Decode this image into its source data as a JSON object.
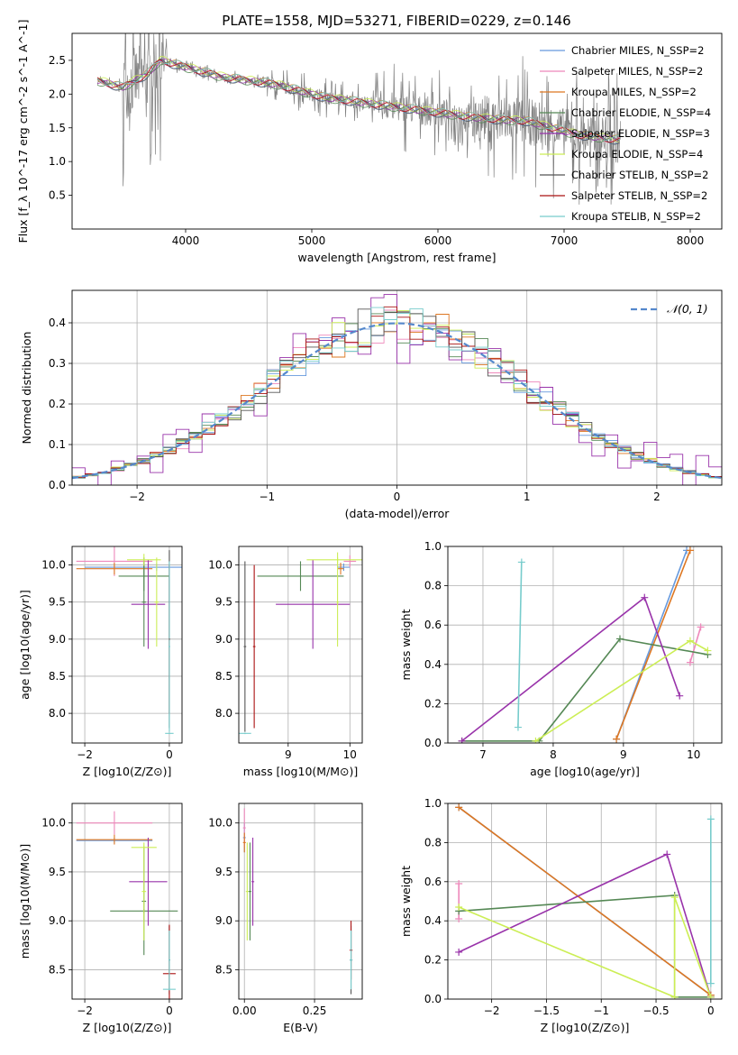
{
  "title": "PLATE=1558, MJD=53271, FIBERID=0229, z=0.146",
  "series": [
    {
      "key": "chab_miles",
      "color": "#6699dd"
    },
    {
      "key": "salp_miles",
      "color": "#ee88bb"
    },
    {
      "key": "krou_miles",
      "color": "#dd7722"
    },
    {
      "key": "chab_elodie",
      "color": "#558855"
    },
    {
      "key": "salp_elodie",
      "color": "#9933aa"
    },
    {
      "key": "krou_elodie",
      "color": "#ccee55"
    },
    {
      "key": "chab_stelib",
      "color": "#555555"
    },
    {
      "key": "salp_stelib",
      "color": "#aa1111"
    },
    {
      "key": "krou_stelib",
      "color": "#77cccc"
    }
  ],
  "legend_labels": [
    "Chabrier MILES, N_SSP=2",
    "Salpeter MILES, N_SSP=2",
    "Kroupa MILES, N_SSP=2",
    "Chabrier ELODIE, N_SSP=4",
    "Salpeter ELODIE, N_SSP=3",
    "Kroupa ELODIE, N_SSP=4",
    "Chabrier STELIB, N_SSP=2",
    "Salpeter STELIB, N_SSP=2",
    "Kroupa STELIB, N_SSP=2"
  ],
  "chart_data": [
    {
      "id": "spectrum",
      "type": "line",
      "xlabel": "wavelength [Angstrom, rest frame]",
      "ylabel": "Flux [f_λ 10^-17 erg cm^-2 s^-1 A^-1]",
      "xlim": [
        3100,
        8250
      ],
      "ylim": [
        0,
        2.9
      ],
      "xticks": [
        4000,
        5000,
        6000,
        7000,
        8000
      ],
      "yticks": [
        0.5,
        1.0,
        1.5,
        2.0,
        2.5
      ],
      "data_color": "#808080",
      "continuum": [
        [
          3300,
          2.2
        ],
        [
          3500,
          2.1
        ],
        [
          3700,
          2.3
        ],
        [
          3800,
          2.5
        ],
        [
          3900,
          2.45
        ],
        [
          4100,
          2.35
        ],
        [
          4300,
          2.25
        ],
        [
          4500,
          2.2
        ],
        [
          4700,
          2.15
        ],
        [
          4900,
          2.05
        ],
        [
          5100,
          1.95
        ],
        [
          5300,
          1.9
        ],
        [
          5500,
          1.85
        ],
        [
          5700,
          1.8
        ],
        [
          5900,
          1.75
        ],
        [
          6100,
          1.7
        ],
        [
          6300,
          1.65
        ],
        [
          6500,
          1.62
        ],
        [
          6700,
          1.6
        ],
        [
          6900,
          1.5
        ],
        [
          7100,
          1.4
        ],
        [
          7300,
          1.35
        ],
        [
          7500,
          1.3
        ]
      ]
    },
    {
      "id": "residuals",
      "type": "line",
      "xlabel": "(data-model)/error",
      "ylabel": "Normed distribution",
      "xlim": [
        -2.5,
        2.5
      ],
      "ylim": [
        0,
        0.48
      ],
      "xticks": [
        -2,
        -1,
        0,
        1,
        2
      ],
      "yticks": [
        0.0,
        0.1,
        0.2,
        0.3,
        0.4
      ],
      "gaussian_label": "𝒩(0, 1)",
      "gaussian_color": "#5588cc"
    },
    {
      "id": "age_z",
      "type": "scatter",
      "xlabel": "Z [log10(Z/Z⊙)]",
      "ylabel": "age  [log10(age/yr)]",
      "xlim": [
        -2.3,
        0.3
      ],
      "ylim": [
        7.6,
        10.25
      ],
      "xticks": [
        -2,
        0
      ],
      "yticks": [
        8.0,
        8.5,
        9.0,
        9.5,
        10.0
      ],
      "points": [
        {
          "s": 0,
          "x": -0.3,
          "y": 9.97,
          "xe": 1.7,
          "ye": 0.05
        },
        {
          "s": 1,
          "x": -1.3,
          "y": 10.05,
          "xe": 0.9,
          "ye": 0.2
        },
        {
          "s": 2,
          "x": -1.3,
          "y": 9.95,
          "xe": 0.9,
          "ye": 0.08
        },
        {
          "s": 3,
          "x": -0.6,
          "y": 9.85,
          "xe": 0.6,
          "ye": 0.2
        },
        {
          "s": 3,
          "x": -0.6,
          "y": 9.5,
          "xe": 0.05,
          "ye": 0.6
        },
        {
          "s": 4,
          "x": -0.5,
          "y": 9.47,
          "xe": 0.4,
          "ye": 0.6
        },
        {
          "s": 5,
          "x": -0.6,
          "y": 10.07,
          "xe": 0.4,
          "ye": 0.08
        },
        {
          "s": 5,
          "x": -0.3,
          "y": 9.5,
          "xe": 0.05,
          "ye": 0.6
        },
        {
          "s": 6,
          "x": 0.0,
          "y": 9.0,
          "xe": 0.02,
          "ye": 1.2
        },
        {
          "s": 7,
          "x": 0.0,
          "y": 9.0,
          "xe": 0.02,
          "ye": 1.0
        },
        {
          "s": 8,
          "x": 0.0,
          "y": 7.73,
          "xe": 0.1,
          "ye": 0.01
        },
        {
          "s": 8,
          "x": 0.0,
          "y": 8.9,
          "xe": 0.02,
          "ye": 1.15
        }
      ]
    },
    {
      "id": "age_mass",
      "type": "scatter",
      "xlabel": "mass [log10(M/M⊙)]",
      "ylabel": "",
      "xlim": [
        8.2,
        10.2
      ],
      "ylim": [
        7.6,
        10.25
      ],
      "xticks": [
        9,
        10
      ],
      "yticks": [
        8.0,
        8.5,
        9.0,
        9.5,
        10.0
      ],
      "points": [
        {
          "s": 0,
          "x": 9.9,
          "y": 9.97,
          "xe": 0.1,
          "ye": 0.05
        },
        {
          "s": 1,
          "x": 10.0,
          "y": 10.05,
          "xe": 0.1,
          "ye": 0.08
        },
        {
          "s": 2,
          "x": 9.85,
          "y": 9.95,
          "xe": 0.05,
          "ye": 0.08
        },
        {
          "s": 3,
          "x": 9.2,
          "y": 9.85,
          "xe": 0.7,
          "ye": 0.2
        },
        {
          "s": 4,
          "x": 9.4,
          "y": 9.47,
          "xe": 0.6,
          "ye": 0.6
        },
        {
          "s": 5,
          "x": 9.8,
          "y": 10.07,
          "xe": 0.5,
          "ye": 0.1
        },
        {
          "s": 5,
          "x": 9.8,
          "y": 9.5,
          "xe": 0.02,
          "ye": 0.6
        },
        {
          "s": 6,
          "x": 8.3,
          "y": 8.9,
          "xe": 0.02,
          "ye": 1.15
        },
        {
          "s": 7,
          "x": 8.45,
          "y": 8.9,
          "xe": 0.02,
          "ye": 1.1
        },
        {
          "s": 8,
          "x": 8.3,
          "y": 7.73,
          "xe": 0.1,
          "ye": 0.01
        }
      ]
    },
    {
      "id": "weight_age",
      "type": "line",
      "xlabel": "age  [log10(age/yr)]",
      "ylabel": "mass weight",
      "xlim": [
        6.5,
        10.4
      ],
      "ylim": [
        0,
        1.0
      ],
      "xticks": [
        7,
        8,
        9,
        10
      ],
      "yticks": [
        0.0,
        0.2,
        0.4,
        0.6,
        0.8,
        1.0
      ],
      "lines": [
        {
          "s": 0,
          "pts": [
            [
              8.9,
              0.02
            ],
            [
              9.9,
              0.98
            ]
          ]
        },
        {
          "s": 1,
          "pts": [
            [
              9.95,
              0.41
            ],
            [
              10.1,
              0.59
            ]
          ]
        },
        {
          "s": 2,
          "pts": [
            [
              8.9,
              0.02
            ],
            [
              9.95,
              0.98
            ]
          ]
        },
        {
          "s": 3,
          "pts": [
            [
              6.7,
              0.01
            ],
            [
              7.8,
              0.01
            ],
            [
              8.95,
              0.53
            ],
            [
              10.2,
              0.45
            ]
          ]
        },
        {
          "s": 4,
          "pts": [
            [
              6.7,
              0.01
            ],
            [
              9.3,
              0.74
            ],
            [
              9.8,
              0.24
            ]
          ]
        },
        {
          "s": 5,
          "pts": [
            [
              7.75,
              0.01
            ],
            [
              9.95,
              0.52
            ],
            [
              10.2,
              0.47
            ]
          ]
        },
        {
          "s": 8,
          "pts": [
            [
              7.5,
              0.08
            ],
            [
              7.55,
              0.92
            ]
          ]
        }
      ]
    },
    {
      "id": "mass_z",
      "type": "scatter",
      "xlabel": "Z [log10(Z/Z⊙)]",
      "ylabel": "mass [log10(M/M⊙)]",
      "xlim": [
        -2.3,
        0.3
      ],
      "ylim": [
        8.2,
        10.2
      ],
      "xticks": [
        -2,
        0
      ],
      "yticks": [
        8.5,
        9.0,
        9.5,
        10.0
      ],
      "points": [
        {
          "s": 0,
          "x": -1.3,
          "y": 9.82,
          "xe": 0.9,
          "ye": 0.03
        },
        {
          "s": 1,
          "x": -1.3,
          "y": 10.0,
          "xe": 0.9,
          "ye": 0.12
        },
        {
          "s": 2,
          "x": -1.3,
          "y": 9.83,
          "xe": 0.9,
          "ye": 0.05
        },
        {
          "s": 3,
          "x": -0.6,
          "y": 9.1,
          "xe": 0.8,
          "ye": 0.02
        },
        {
          "s": 3,
          "x": -0.6,
          "y": 9.2,
          "xe": 0.05,
          "ye": 0.55
        },
        {
          "s": 4,
          "x": -0.5,
          "y": 9.4,
          "xe": 0.45,
          "ye": 0.45
        },
        {
          "s": 5,
          "x": -0.6,
          "y": 9.75,
          "xe": 0.3,
          "ye": 0.02
        },
        {
          "s": 5,
          "x": -0.6,
          "y": 9.3,
          "xe": 0.05,
          "ye": 0.5
        },
        {
          "s": 6,
          "x": 0.0,
          "y": 8.6,
          "xe": 0.02,
          "ye": 0.35
        },
        {
          "s": 7,
          "x": 0.0,
          "y": 8.46,
          "xe": 0.15,
          "ye": 0.5
        },
        {
          "s": 8,
          "x": 0.0,
          "y": 8.3,
          "xe": 0.15,
          "ye": 0.01
        },
        {
          "s": 8,
          "x": 0.0,
          "y": 8.6,
          "xe": 0.02,
          "ye": 0.3
        }
      ]
    },
    {
      "id": "mass_ebv",
      "type": "scatter",
      "xlabel": "E(B-V)",
      "ylabel": "",
      "xlim": [
        -0.02,
        0.42
      ],
      "ylim": [
        8.2,
        10.2
      ],
      "xticks": [
        0.0,
        0.25
      ],
      "xtick_labels": [
        "0.00",
        "0.25"
      ],
      "yticks": [
        8.5,
        9.0,
        9.5,
        10.0
      ],
      "points": [
        {
          "s": 0,
          "x": 0.0,
          "y": 9.85,
          "xe": 0.005,
          "ye": 0.15
        },
        {
          "s": 1,
          "x": 0.0,
          "y": 9.95,
          "xe": 0.005,
          "ye": 0.2
        },
        {
          "s": 2,
          "x": 0.0,
          "y": 9.8,
          "xe": 0.005,
          "ye": 0.1
        },
        {
          "s": 3,
          "x": 0.02,
          "y": 9.3,
          "xe": 0.005,
          "ye": 0.5
        },
        {
          "s": 4,
          "x": 0.03,
          "y": 9.4,
          "xe": 0.005,
          "ye": 0.45
        },
        {
          "s": 5,
          "x": 0.01,
          "y": 9.3,
          "xe": 0.005,
          "ye": 0.5
        },
        {
          "s": 6,
          "x": 0.38,
          "y": 8.6,
          "xe": 0.005,
          "ye": 0.35
        },
        {
          "s": 7,
          "x": 0.38,
          "y": 8.7,
          "xe": 0.005,
          "ye": 0.3
        },
        {
          "s": 8,
          "x": 0.38,
          "y": 8.6,
          "xe": 0.005,
          "ye": 0.3
        }
      ]
    },
    {
      "id": "weight_z",
      "type": "line",
      "xlabel": "Z [log10(Z/Z⊙)]",
      "ylabel": "mass weight",
      "xlim": [
        -2.4,
        0.1
      ],
      "ylim": [
        0,
        1.0
      ],
      "xticks": [
        -2.0,
        -1.5,
        -1.0,
        -0.5,
        0.0
      ],
      "yticks": [
        0.0,
        0.2,
        0.4,
        0.6,
        0.8,
        1.0
      ],
      "lines": [
        {
          "s": 0,
          "pts": [
            [
              -2.3,
              0.98
            ],
            [
              0.0,
              0.02
            ]
          ]
        },
        {
          "s": 1,
          "pts": [
            [
              -2.3,
              0.41
            ],
            [
              -2.3,
              0.59
            ]
          ]
        },
        {
          "s": 2,
          "pts": [
            [
              -2.3,
              0.98
            ],
            [
              0.0,
              0.02
            ]
          ]
        },
        {
          "s": 3,
          "pts": [
            [
              -2.3,
              0.45
            ],
            [
              -0.33,
              0.53
            ],
            [
              -0.33,
              0.01
            ],
            [
              0.0,
              0.01
            ]
          ]
        },
        {
          "s": 4,
          "pts": [
            [
              -2.3,
              0.24
            ],
            [
              -0.4,
              0.74
            ],
            [
              0.0,
              0.01
            ]
          ]
        },
        {
          "s": 5,
          "pts": [
            [
              -2.3,
              0.47
            ],
            [
              -0.33,
              0.01
            ],
            [
              -0.33,
              0.52
            ],
            [
              0.0,
              0.01
            ]
          ]
        },
        {
          "s": 8,
          "pts": [
            [
              0.0,
              0.08
            ],
            [
              0.0,
              0.92
            ]
          ]
        }
      ]
    }
  ]
}
